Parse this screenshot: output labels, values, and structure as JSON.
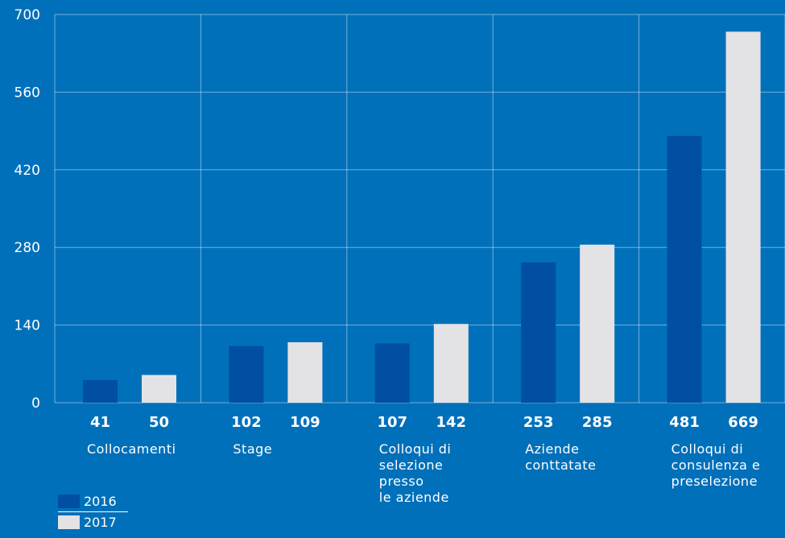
{
  "chart_data": {
    "type": "bar",
    "categories": [
      "Collocamenti",
      "Stage",
      "Colloqui di\nselezione\npresso\nle aziende",
      "Aziende\nconttatate",
      "Colloqui di\nconsulenza e\npreselezione"
    ],
    "series": [
      {
        "name": "2016",
        "color": "#004FA2",
        "values": [
          41,
          102,
          107,
          253,
          481
        ]
      },
      {
        "name": "2017",
        "color": "#E3E3E5",
        "values": [
          50,
          109,
          142,
          285,
          669
        ]
      }
    ],
    "ylim": [
      0,
      700
    ],
    "yticks": [
      0,
      140,
      280,
      420,
      560,
      700
    ],
    "grid": true,
    "legend_position": "bottom-left",
    "background": "#0070BA"
  }
}
